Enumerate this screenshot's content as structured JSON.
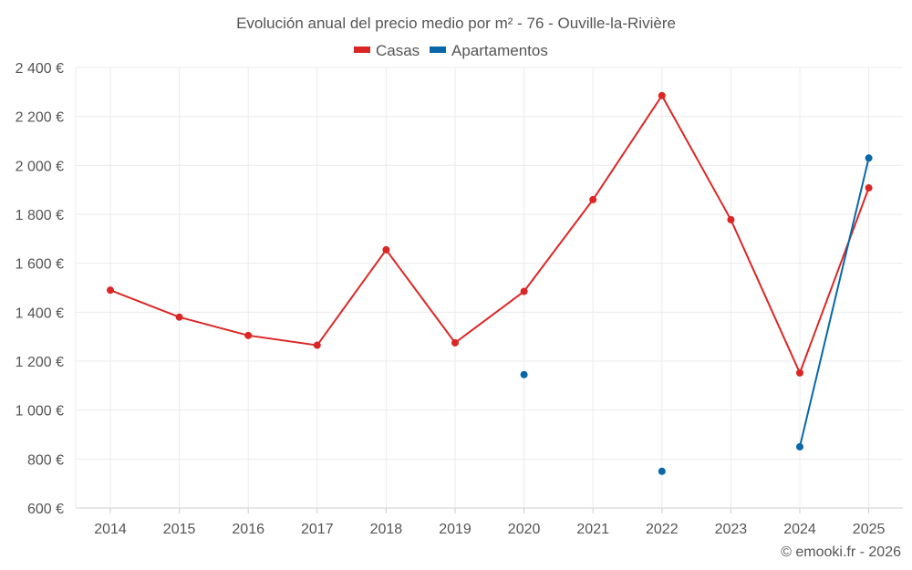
{
  "chart_data": {
    "type": "line",
    "title": "Evolución anual del precio medio por m² - 76 - Ouville-la-Rivière",
    "x": [
      "2014",
      "2015",
      "2016",
      "2017",
      "2018",
      "2019",
      "2020",
      "2021",
      "2022",
      "2023",
      "2024",
      "2025"
    ],
    "series": [
      {
        "name": "Casas",
        "color": "#dc2626",
        "values": [
          1490,
          1380,
          1305,
          1265,
          1655,
          1275,
          1485,
          1860,
          2285,
          1778,
          1152,
          1908
        ]
      },
      {
        "name": "Apartamentos",
        "color": "#0868a8",
        "values": [
          null,
          null,
          null,
          null,
          null,
          null,
          1145,
          null,
          750,
          null,
          850,
          2030
        ]
      }
    ],
    "ylim": [
      600,
      2400
    ],
    "yticks": [
      600,
      800,
      1000,
      1200,
      1400,
      1600,
      1800,
      2000,
      2200,
      2400
    ],
    "ytick_labels": [
      "600 €",
      "800 €",
      "1 000 €",
      "1 200 €",
      "1 400 €",
      "1 600 €",
      "1 800 €",
      "2 000 €",
      "2 200 €",
      "2 400 €"
    ],
    "grid": true,
    "legend": "top-center",
    "credit": "© emooki.fr - 2026"
  }
}
